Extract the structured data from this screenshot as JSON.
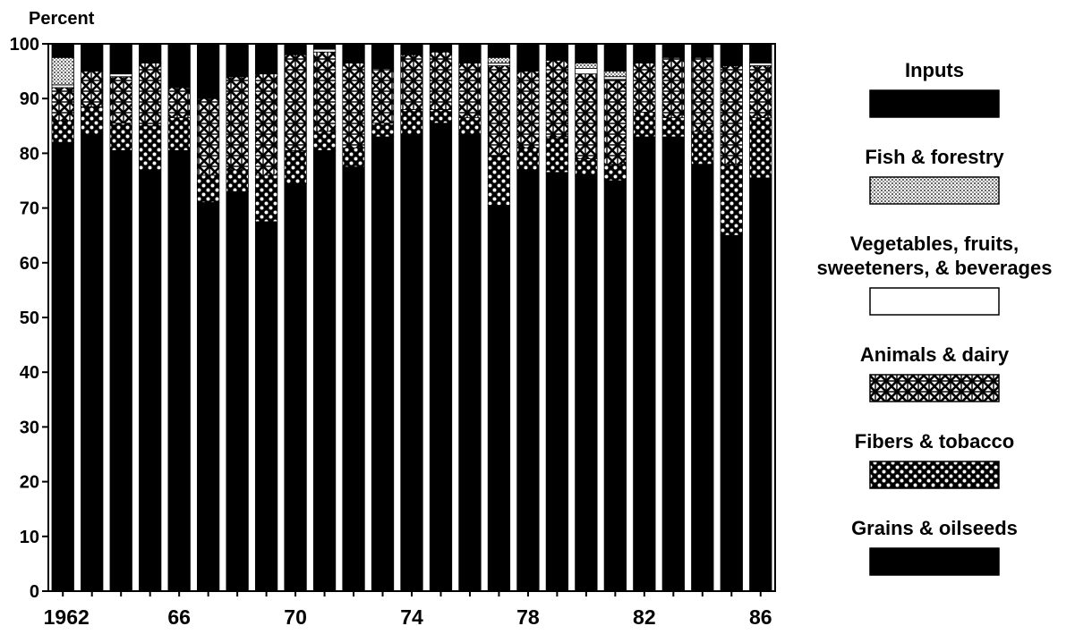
{
  "chart_data": {
    "type": "bar",
    "stacked": true,
    "ylabel": "Percent",
    "xlabel": "",
    "ylim": [
      0,
      100
    ],
    "yticks": [
      0,
      10,
      20,
      30,
      40,
      50,
      60,
      70,
      80,
      90,
      100
    ],
    "categories": [
      "1962",
      "1963",
      "1964",
      "1965",
      "1966",
      "1967",
      "1968",
      "1969",
      "1970",
      "1971",
      "1972",
      "1973",
      "1974",
      "1975",
      "1976",
      "1977",
      "1978",
      "1979",
      "1980",
      "1981",
      "1982",
      "1983",
      "1984",
      "1985",
      "1986"
    ],
    "xtick_labels": [
      {
        "year": "1962",
        "label": "1962"
      },
      {
        "year": "1966",
        "label": "66"
      },
      {
        "year": "1970",
        "label": "70"
      },
      {
        "year": "1974",
        "label": "74"
      },
      {
        "year": "1978",
        "label": "78"
      },
      {
        "year": "1982",
        "label": "82"
      },
      {
        "year": "1986",
        "label": "86"
      }
    ],
    "legend_position": "right",
    "series": [
      {
        "name": "Grains & oilseeds",
        "pattern": "solid-black",
        "values": [
          82,
          83.5,
          80.5,
          77,
          80.5,
          71,
          73,
          67.5,
          74.5,
          80.5,
          77.5,
          83,
          83.5,
          85.5,
          83.5,
          70.5,
          77,
          76.5,
          76,
          75,
          83,
          83,
          78,
          65,
          75.5
        ]
      },
      {
        "name": "Fibers & tobacco",
        "pattern": "dotted-cross",
        "values": [
          4,
          5,
          5,
          8,
          6,
          5,
          4,
          8.5,
          6,
          3.5,
          3.5,
          2.5,
          4.5,
          2.5,
          3,
          9,
          4,
          6.5,
          3,
          3,
          4.5,
          3.5,
          6,
          13,
          11
        ]
      },
      {
        "name": "Animals & dairy",
        "pattern": "dense-crosshatch",
        "values": [
          6,
          6.5,
          8.5,
          11.5,
          5.5,
          14,
          17,
          18.5,
          17.5,
          14.5,
          15.5,
          10,
          10,
          10.5,
          10,
          16.5,
          14,
          14,
          15.5,
          15.5,
          9,
          11,
          13.5,
          18,
          9.5
        ]
      },
      {
        "name": "Vegetables, fruits,\nsweeteners, & beverages",
        "pattern": "white",
        "values": [
          0.5,
          0,
          0.5,
          0,
          0,
          0,
          0,
          0,
          0,
          0.5,
          0,
          0,
          0,
          0,
          0,
          0.5,
          0,
          0,
          1,
          0.5,
          0,
          0,
          0,
          0,
          0.5
        ]
      },
      {
        "name": "Fish & forestry",
        "pattern": "fine-dots",
        "values": [
          5,
          0,
          0,
          0,
          0,
          0,
          0,
          0,
          0,
          0,
          0,
          0,
          0,
          0,
          0,
          1,
          0,
          0,
          1,
          1,
          0,
          0,
          0,
          0,
          0
        ]
      },
      {
        "name": "Inputs",
        "pattern": "solid-black",
        "values": [
          2.5,
          5,
          5.5,
          3.5,
          8,
          10,
          6,
          5.5,
          2,
          1,
          3.5,
          4.5,
          2,
          1.5,
          3.5,
          2.5,
          5,
          3,
          3.5,
          5,
          3.5,
          2.5,
          2.5,
          4,
          3.5
        ]
      }
    ]
  }
}
